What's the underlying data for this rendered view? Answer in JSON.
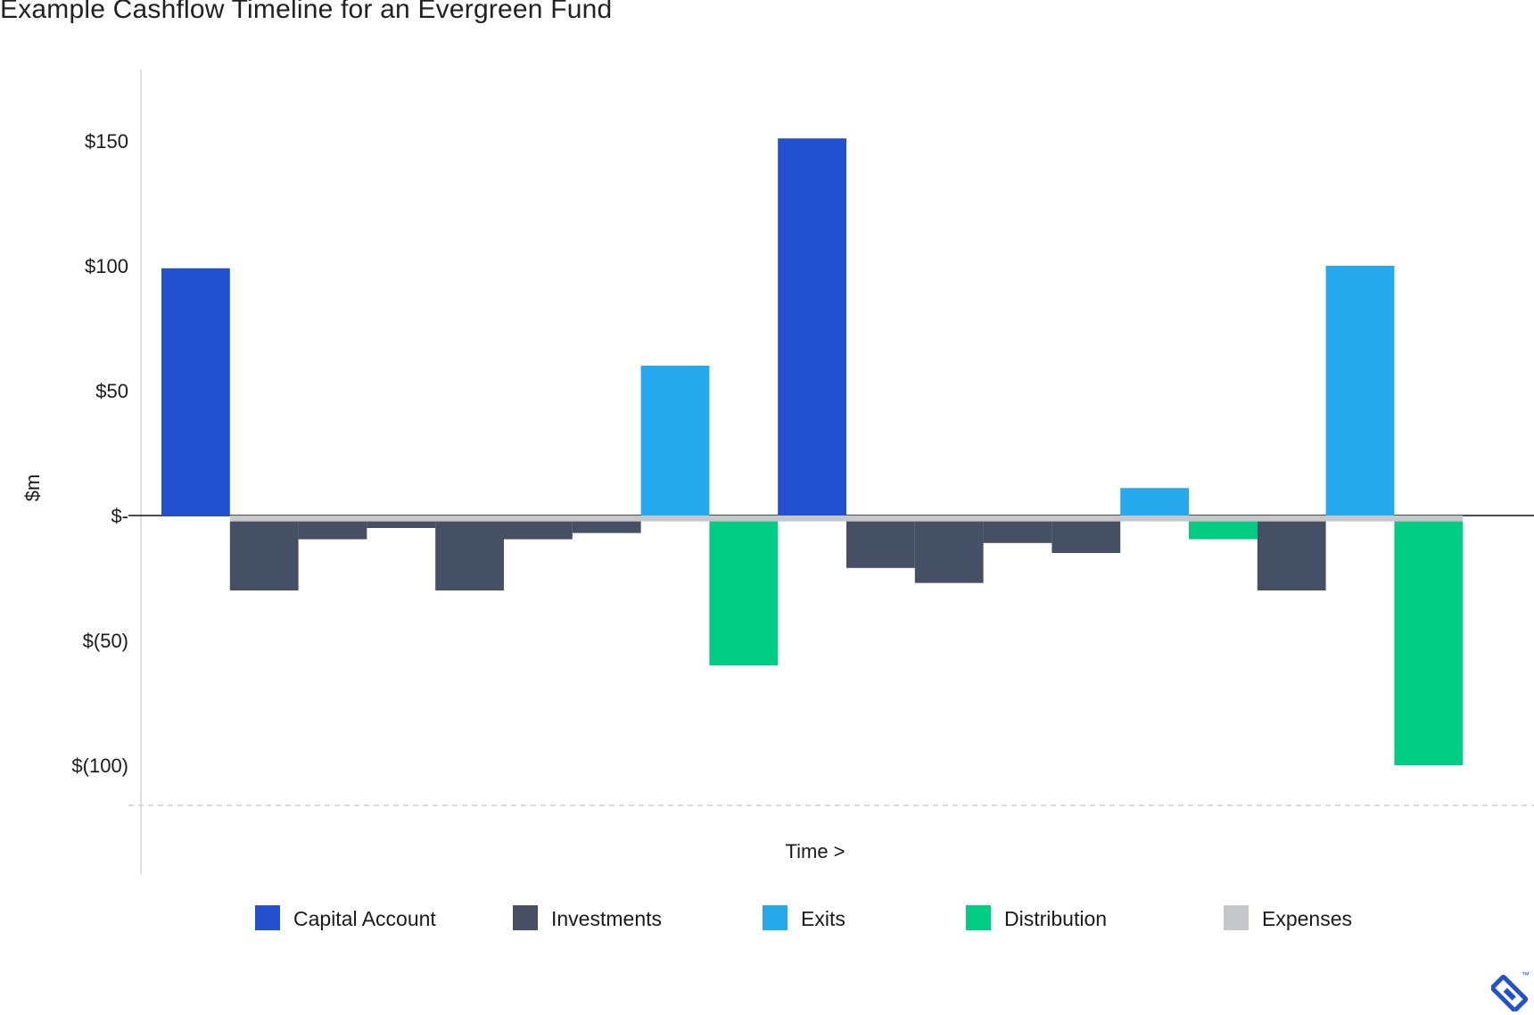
{
  "title": "Example Cashflow Timeline for an Evergreen Fund",
  "chart_data": {
    "type": "bar",
    "title": "Example Cashflow Timeline for an Evergreen Fund",
    "xlabel": "Time >",
    "ylabel": "$m",
    "ylim": [
      -117,
      178
    ],
    "yticks": [
      {
        "value": 150,
        "label": "$150"
      },
      {
        "value": 100,
        "label": "$100"
      },
      {
        "value": 50,
        "label": "$50"
      },
      {
        "value": 0,
        "label": "$-"
      },
      {
        "value": -50,
        "label": "$(50)"
      },
      {
        "value": -100,
        "label": "$(100)"
      }
    ],
    "grid": false,
    "legend_position": "bottom",
    "series": [
      {
        "name": "Capital Account",
        "color": "#2250cf"
      },
      {
        "name": "Investments",
        "color": "#455064"
      },
      {
        "name": "Exits",
        "color": "#25a9ec"
      },
      {
        "name": "Distribution",
        "color": "#00cc83"
      },
      {
        "name": "Expenses",
        "color": "#c6c7cb"
      }
    ],
    "bars": [
      {
        "t0": 0,
        "t1": 1,
        "value": 99,
        "series": "Capital Account"
      },
      {
        "t0": 1,
        "t1": 2,
        "value": -30,
        "series": "Investments"
      },
      {
        "t0": 2,
        "t1": 3,
        "value": -9.5,
        "series": "Investments"
      },
      {
        "t0": 3,
        "t1": 4,
        "value": -5,
        "series": "Investments"
      },
      {
        "t0": 4,
        "t1": 5,
        "value": -30,
        "series": "Investments"
      },
      {
        "t0": 5,
        "t1": 6,
        "value": -9.5,
        "series": "Investments"
      },
      {
        "t0": 6,
        "t1": 7,
        "value": -7,
        "series": "Investments"
      },
      {
        "t0": 7,
        "t1": 8,
        "value": 60,
        "series": "Exits"
      },
      {
        "t0": 8,
        "t1": 9,
        "value": -60,
        "series": "Distribution"
      },
      {
        "t0": 9,
        "t1": 10,
        "value": 151,
        "series": "Capital Account"
      },
      {
        "t0": 10,
        "t1": 11,
        "value": -21,
        "series": "Investments"
      },
      {
        "t0": 11,
        "t1": 12,
        "value": -27,
        "series": "Investments"
      },
      {
        "t0": 12,
        "t1": 13,
        "value": -11,
        "series": "Investments"
      },
      {
        "t0": 13,
        "t1": 14,
        "value": -15,
        "series": "Investments"
      },
      {
        "t0": 14,
        "t1": 15,
        "value": 11,
        "series": "Exits"
      },
      {
        "t0": 15,
        "t1": 16,
        "value": -9.5,
        "series": "Distribution"
      },
      {
        "t0": 16,
        "t1": 17,
        "value": -30,
        "series": "Investments"
      },
      {
        "t0": 17,
        "t1": 18,
        "value": 100,
        "series": "Exits"
      },
      {
        "t0": 18,
        "t1": 19,
        "value": -100,
        "series": "Distribution"
      }
    ],
    "expenses": {
      "series": "Expenses",
      "value": -2,
      "t0": 1,
      "t1": 19
    }
  },
  "icons": {
    "brand_logo": "toptal-logo",
    "trademark": "™"
  }
}
